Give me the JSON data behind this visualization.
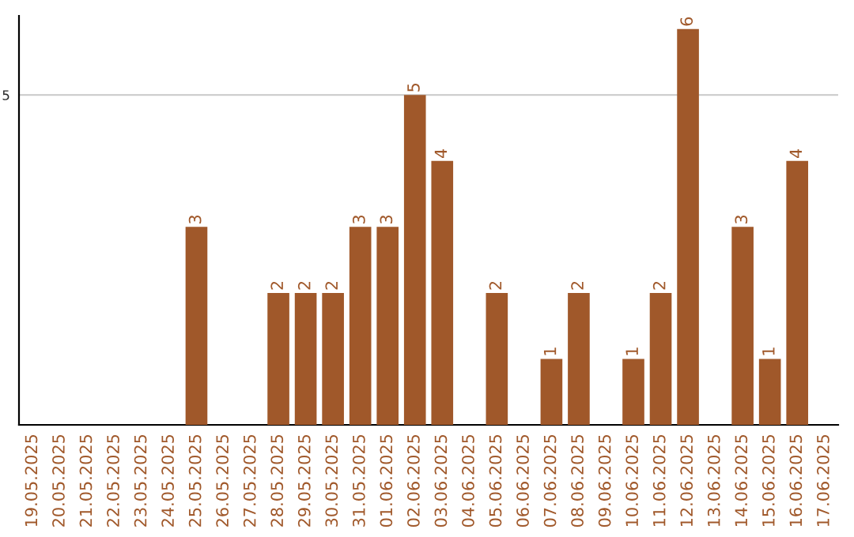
{
  "chart_data": {
    "type": "bar",
    "categories": [
      "19.05.2025",
      "20.05.2025",
      "21.05.2025",
      "22.05.2025",
      "23.05.2025",
      "24.05.2025",
      "25.05.2025",
      "26.05.2025",
      "27.05.2025",
      "28.05.2025",
      "29.05.2025",
      "30.05.2025",
      "31.05.2025",
      "01.06.2025",
      "02.06.2025",
      "03.06.2025",
      "04.06.2025",
      "05.06.2025",
      "06.06.2025",
      "07.06.2025",
      "08.06.2025",
      "09.06.2025",
      "10.06.2025",
      "11.06.2025",
      "12.06.2025",
      "13.06.2025",
      "14.06.2025",
      "15.06.2025",
      "16.06.2025",
      "17.06.2025"
    ],
    "values": [
      0,
      0,
      0,
      0,
      0,
      0,
      3,
      0,
      0,
      2,
      2,
      2,
      3,
      3,
      5,
      4,
      0,
      2,
      0,
      1,
      2,
      0,
      1,
      2,
      6,
      0,
      3,
      1,
      4,
      0
    ],
    "value_labels": [
      null,
      null,
      null,
      null,
      null,
      null,
      "3",
      null,
      null,
      "2",
      "2",
      "2",
      "3",
      "3",
      "5",
      "4",
      null,
      "2",
      null,
      "1",
      "2",
      null,
      "1",
      "2",
      "6",
      null,
      "3",
      "1",
      "4",
      null
    ],
    "color": "#a0582a",
    "ylim": [
      0,
      6.2
    ],
    "yticks": [
      5
    ],
    "grid": "y"
  }
}
